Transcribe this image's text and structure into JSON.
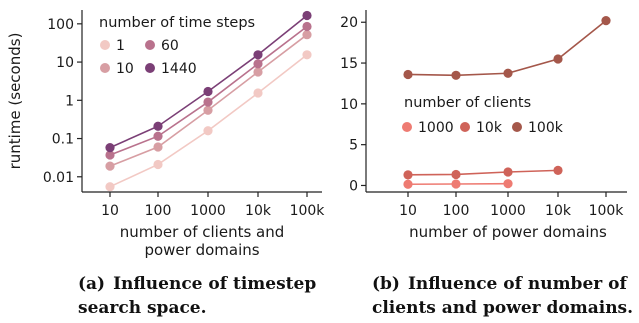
{
  "chart_data": [
    {
      "type": "line",
      "yscale": "log",
      "ylabel": "runtime (seconds)",
      "xlabel_lines": [
        "number of clients and",
        "power domains"
      ],
      "categories": [
        "10",
        "100",
        "1000",
        "10k",
        "100k"
      ],
      "yticks": [
        "0.01",
        "0.1",
        "1",
        "10",
        "100"
      ],
      "ylim": [
        0.004,
        230
      ],
      "legend": {
        "title": "number of time steps",
        "placement": "top-left",
        "entries": [
          "1",
          "60",
          "10",
          "1440"
        ]
      },
      "series": [
        {
          "name": "1",
          "color": "#f2c9c4",
          "values": [
            0.0055,
            0.021,
            0.16,
            1.55,
            15.5
          ]
        },
        {
          "name": "10",
          "color": "#d79ea3",
          "values": [
            0.019,
            0.06,
            0.55,
            5.5,
            52
          ]
        },
        {
          "name": "60",
          "color": "#b9728d",
          "values": [
            0.037,
            0.115,
            0.9,
            9.0,
            85
          ]
        },
        {
          "name": "1440",
          "color": "#7b3f76",
          "values": [
            0.058,
            0.21,
            1.7,
            15.5,
            165
          ]
        }
      ]
    },
    {
      "type": "line",
      "ylabel": "",
      "xlabel": "number of power domains",
      "categories": [
        "10",
        "100",
        "1000",
        "10k",
        "100k"
      ],
      "yticks": [
        "0",
        "5",
        "10",
        "15",
        "20"
      ],
      "ylim": [
        -0.8,
        21.5
      ],
      "legend": {
        "title": "number of clients",
        "placement": "center-left",
        "entries": [
          "1000",
          "10k",
          "100k"
        ]
      },
      "series": [
        {
          "name": "1000",
          "color": "#ee7b72",
          "values": [
            0.15,
            0.18,
            0.22,
            null,
            null
          ]
        },
        {
          "name": "10k",
          "color": "#cf6359",
          "values": [
            1.3,
            1.35,
            1.65,
            1.85,
            null
          ]
        },
        {
          "name": "100k",
          "color": "#a4574a",
          "values": [
            13.6,
            13.5,
            13.75,
            15.5,
            20.2
          ]
        }
      ]
    }
  ],
  "captions": {
    "a_label": "(a)",
    "a_text": "Influence of timestep search space.",
    "b_label": "(b)",
    "b_text": "Influence of number of clients and power domains."
  }
}
